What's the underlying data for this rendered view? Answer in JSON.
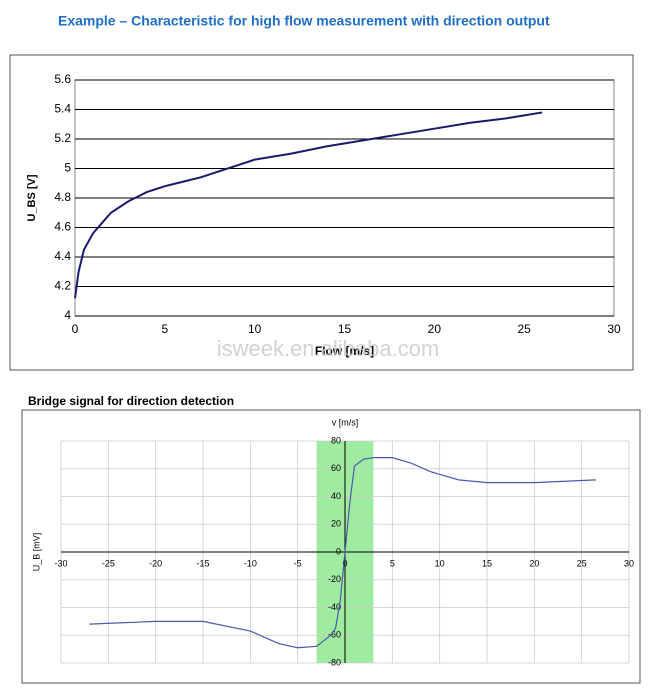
{
  "title": "Example – Characteristic for high flow measurement with direction output",
  "watermark": "isweek.en.alibaba.com",
  "chart_data": [
    {
      "type": "line",
      "x_label": "Flow [m/s]",
      "y_label": "U_BS [V]",
      "x": [
        0,
        0.2,
        0.5,
        1,
        1.5,
        2,
        3,
        4,
        5,
        6,
        7,
        8,
        9,
        10,
        12,
        14,
        16,
        18,
        20,
        22,
        24,
        26
      ],
      "series": [
        {
          "name": "U_BS",
          "color": "#1a1a6e",
          "values": [
            4.12,
            4.3,
            4.45,
            4.56,
            4.63,
            4.7,
            4.78,
            4.84,
            4.88,
            4.91,
            4.94,
            4.98,
            5.02,
            5.06,
            5.1,
            5.15,
            5.19,
            5.23,
            5.27,
            5.31,
            5.34,
            5.38
          ]
        }
      ],
      "xlim": [
        0,
        30
      ],
      "xticks": [
        0,
        5,
        10,
        15,
        20,
        25,
        30
      ],
      "ylim": [
        4,
        5.6
      ],
      "yticks": [
        4,
        4.2,
        4.4,
        4.6,
        4.8,
        5,
        5.2,
        5.4,
        5.6
      ],
      "grid": true
    },
    {
      "type": "line",
      "title": "Bridge signal for direction detection",
      "x_label": "v [m/s]",
      "y_label": "U_B [mV]",
      "x": [
        -27,
        -20,
        -15,
        -10,
        -7,
        -5,
        -3,
        -1.5,
        -1,
        -0.5,
        0,
        0.5,
        1,
        2,
        3,
        5,
        7,
        9,
        12,
        15,
        20,
        26.5
      ],
      "series": [
        {
          "name": "U_B",
          "color": "#4a5ab0",
          "values": [
            -52,
            -50,
            -50,
            -57,
            -66,
            -69,
            -68,
            -60,
            -55,
            -35,
            0,
            35,
            62,
            67,
            68,
            68,
            64,
            58,
            52,
            50,
            50,
            52
          ]
        }
      ],
      "xlim": [
        -30,
        30
      ],
      "xticks": [
        -30,
        -25,
        -20,
        -15,
        -10,
        -5,
        0,
        5,
        10,
        15,
        20,
        25,
        30
      ],
      "ylim": [
        -80,
        80
      ],
      "yticks": [
        -80,
        -60,
        -40,
        -20,
        0,
        20,
        40,
        60,
        80
      ],
      "highlight_x": [
        -3,
        3
      ],
      "highlight_color": "#8ee88e",
      "grid": true
    }
  ]
}
